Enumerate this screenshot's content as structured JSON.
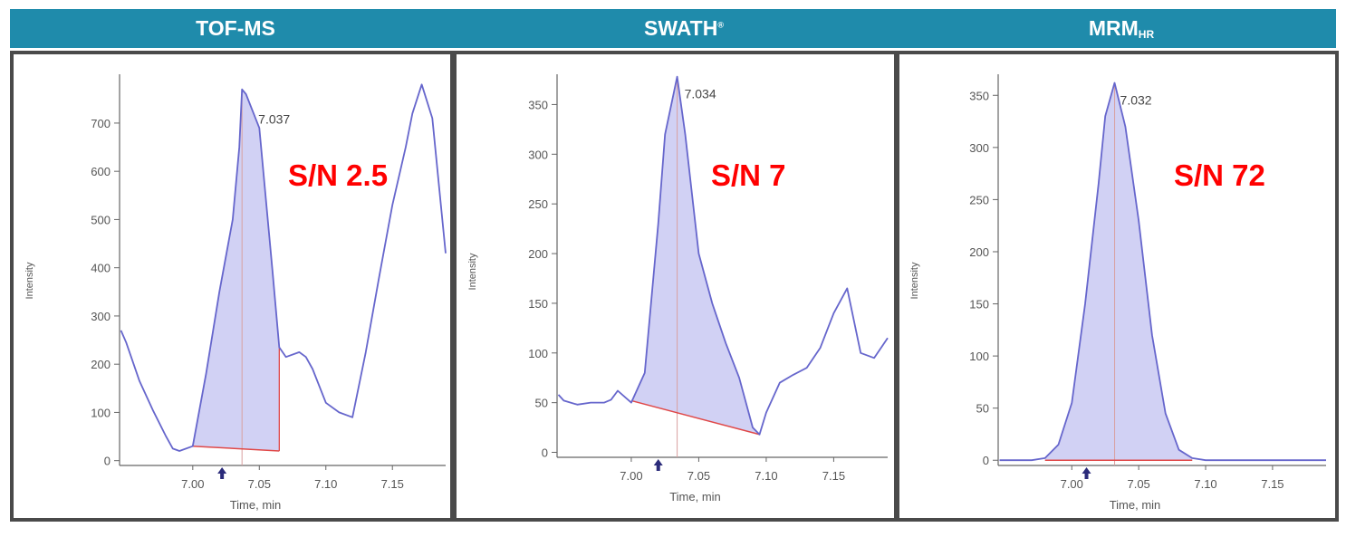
{
  "header": {
    "background": "#1f8bab",
    "panels": [
      {
        "label": "TOF-MS",
        "suffix": "",
        "suffix_style": ""
      },
      {
        "label": "SWATH",
        "suffix": "®",
        "suffix_style": "sup"
      },
      {
        "label": "MRM",
        "suffix": "HR",
        "suffix_style": "sub"
      }
    ]
  },
  "chart_data": [
    {
      "type": "line",
      "panel": "TOF-MS",
      "xlabel": "Time, min",
      "ylabel": "Intensity",
      "xlim": [
        6.945,
        7.19
      ],
      "ylim": [
        -10,
        790
      ],
      "xticks": [
        7.0,
        7.05,
        7.1,
        7.15
      ],
      "xtick_labels": [
        "7.00",
        "7.05",
        "7.10",
        "7.15"
      ],
      "yticks": [
        0,
        100,
        200,
        300,
        400,
        500,
        600,
        700
      ],
      "yticks_labels": [
        "0",
        "100",
        "200",
        "300",
        "400",
        "500",
        "600",
        "700"
      ],
      "x": [
        6.946,
        6.95,
        6.96,
        6.97,
        6.98,
        6.985,
        6.99,
        7.0,
        7.01,
        7.02,
        7.03,
        7.035,
        7.037,
        7.04,
        7.05,
        7.06,
        7.065,
        7.07,
        7.08,
        7.085,
        7.09,
        7.1,
        7.11,
        7.12,
        7.13,
        7.14,
        7.15,
        7.16,
        7.165,
        7.172,
        7.18,
        7.19
      ],
      "y": [
        270,
        245,
        165,
        105,
        50,
        25,
        20,
        30,
        180,
        350,
        500,
        650,
        770,
        760,
        690,
        390,
        235,
        215,
        225,
        215,
        190,
        120,
        100,
        90,
        225,
        380,
        530,
        650,
        720,
        780,
        710,
        430
      ],
      "peak": {
        "apex_label": "7.037",
        "start": 7.0,
        "end": 7.065,
        "baseline": [
          30,
          20
        ]
      },
      "annotation": "S/N 2.5",
      "annotation_color": "#ff0000",
      "marker_x": 7.022
    },
    {
      "type": "line",
      "panel": "SWATH",
      "xlabel": "Time, min",
      "ylabel": "Intensity",
      "xlim": [
        6.945,
        7.19
      ],
      "ylim": [
        -5,
        375
      ],
      "xticks": [
        7.0,
        7.05,
        7.1,
        7.15
      ],
      "xtick_labels": [
        "7.00",
        "7.05",
        "7.10",
        "7.15"
      ],
      "yticks": [
        0,
        50,
        100,
        150,
        200,
        250,
        300,
        350
      ],
      "yticks_labels": [
        "0",
        "50",
        "100",
        "150",
        "200",
        "250",
        "300",
        "350"
      ],
      "x": [
        6.946,
        6.95,
        6.96,
        6.97,
        6.98,
        6.985,
        6.99,
        7.0,
        7.01,
        7.02,
        7.025,
        7.034,
        7.04,
        7.05,
        7.06,
        7.07,
        7.08,
        7.09,
        7.095,
        7.1,
        7.11,
        7.12,
        7.13,
        7.14,
        7.15,
        7.16,
        7.17,
        7.18,
        7.19
      ],
      "y": [
        58,
        52,
        48,
        50,
        50,
        53,
        62,
        50,
        80,
        230,
        320,
        378,
        320,
        200,
        150,
        110,
        75,
        25,
        18,
        40,
        70,
        78,
        85,
        105,
        140,
        165,
        100,
        95,
        115
      ],
      "peak": {
        "apex_label": "7.034",
        "start": 7.0,
        "end": 7.095,
        "baseline": [
          52,
          18
        ]
      },
      "annotation": "S/N 7",
      "annotation_color": "#ff0000",
      "marker_x": 7.02
    },
    {
      "type": "line",
      "panel": "MRM-HR",
      "xlabel": "Time, min",
      "ylabel": "Intensity",
      "xlim": [
        6.945,
        7.19
      ],
      "ylim": [
        -5,
        365
      ],
      "xticks": [
        7.0,
        7.05,
        7.1,
        7.15
      ],
      "xtick_labels": [
        "7.00",
        "7.05",
        "7.10",
        "7.15"
      ],
      "yticks": [
        0,
        50,
        100,
        150,
        200,
        250,
        300,
        350
      ],
      "yticks_labels": [
        "0",
        "50",
        "100",
        "150",
        "200",
        "250",
        "300",
        "350"
      ],
      "x": [
        6.946,
        6.97,
        6.98,
        6.99,
        7.0,
        7.01,
        7.02,
        7.025,
        7.032,
        7.04,
        7.05,
        7.06,
        7.07,
        7.08,
        7.09,
        7.1,
        7.12,
        7.15,
        7.19
      ],
      "y": [
        0,
        0,
        2,
        15,
        55,
        150,
        265,
        330,
        362,
        320,
        230,
        120,
        45,
        10,
        2,
        0,
        0,
        0,
        0
      ],
      "peak": {
        "apex_label": "7.032",
        "start": 6.98,
        "end": 7.09,
        "baseline": [
          0,
          0
        ]
      },
      "annotation": "S/N 72",
      "annotation_color": "#ff0000",
      "marker_x": 7.011
    }
  ]
}
